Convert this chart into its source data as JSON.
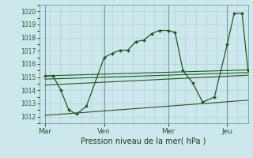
{
  "title": "Pression niveau de la mer( hPa )",
  "bg_color": "#cce8ec",
  "grid_major_color": "#b8d4d8",
  "grid_minor_color": "#d4e8ec",
  "line_color": "#1a5c1a",
  "ylim": [
    1011.5,
    1020.5
  ],
  "yticks": [
    1012,
    1013,
    1014,
    1015,
    1016,
    1017,
    1018,
    1019,
    1020
  ],
  "xlim": [
    -0.3,
    10.3
  ],
  "xtick_labels": [
    "Mar",
    "Ven",
    "Mer",
    "Jeu"
  ],
  "xtick_positions": [
    0,
    3.0,
    6.25,
    9.25
  ],
  "vline_positions": [
    0,
    3.0,
    6.25,
    9.25
  ],
  "main_x": [
    0,
    0.4,
    0.8,
    1.2,
    1.6,
    2.1,
    3.0,
    3.4,
    3.8,
    4.2,
    4.6,
    5.0,
    5.4,
    5.8,
    6.25,
    6.6,
    7.0,
    7.5,
    8.0,
    8.6,
    9.25,
    9.6,
    10.0,
    10.3
  ],
  "main_y": [
    1015.1,
    1015.1,
    1014.0,
    1012.5,
    1012.2,
    1012.8,
    1016.5,
    1016.8,
    1017.05,
    1017.05,
    1017.7,
    1017.8,
    1018.3,
    1018.55,
    1018.55,
    1018.4,
    1015.5,
    1014.55,
    1013.1,
    1013.5,
    1017.5,
    1019.85,
    1019.85,
    1015.55
  ],
  "trend1_x": [
    0,
    10.3
  ],
  "trend1_y": [
    1015.1,
    1015.55
  ],
  "trend2_x": [
    0,
    10.3
  ],
  "trend2_y": [
    1014.85,
    1015.35
  ],
  "trend3_x": [
    0,
    10.3
  ],
  "trend3_y": [
    1014.4,
    1015.15
  ],
  "trend4_x": [
    0,
    10.3
  ],
  "trend4_y": [
    1012.1,
    1013.25
  ]
}
